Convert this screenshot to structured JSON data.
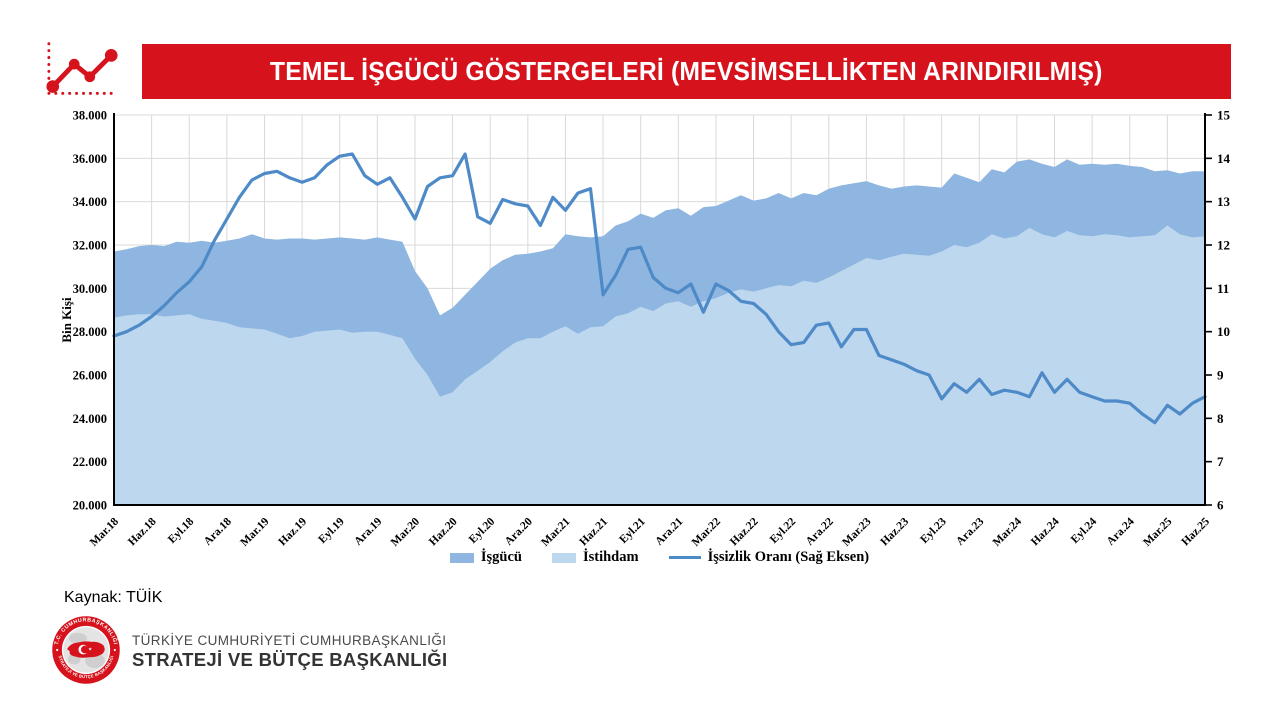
{
  "header": {
    "title": "TEMEL İŞGÜCÜ GÖSTERGELERİ (MEVSİMSELLİKTEN ARINDIRILMIŞ)"
  },
  "source_note": "Kaynak: TÜİK",
  "footer_logo": {
    "line1": "TÜRKİYE CUMHURİYETİ CUMHURBAŞKANLIĞI",
    "line2": "STRATEJİ VE BÜTÇE BAŞKANLIĞI",
    "emblem_top_text": "T.C. CUMHURBAŞKANLIĞI",
    "emblem_bottom_text": "STRATEJİ VE BÜTÇE BAŞKANLIĞI"
  },
  "colors": {
    "accent_red": "#D6131C",
    "grid": "#D9D9D9",
    "axis": "#000000",
    "isgucu_area": "#8FB6E0",
    "istihdam_area": "#BDD7EE",
    "line_blue": "#4E8AC8"
  },
  "chart_data": {
    "type": "area+line",
    "ylabel_left": "Bin Kişi",
    "left_axis": {
      "min": 20000,
      "max": 38000,
      "step": 2000,
      "tick_labels": [
        "38.000",
        "36.000",
        "34.000",
        "32.000",
        "30.000",
        "28.000",
        "26.000",
        "24.000",
        "22.000",
        "20.000"
      ]
    },
    "right_axis": {
      "min": 6,
      "max": 15,
      "step": 1,
      "tick_labels": [
        "15",
        "14",
        "13",
        "12",
        "11",
        "10",
        "9",
        "8",
        "7",
        "6"
      ]
    },
    "x_tick_labels": [
      "Mar.18",
      "Haz.18",
      "Eyl.18",
      "Ara.18",
      "Mar.19",
      "Haz.19",
      "Eyl.19",
      "Ara.19",
      "Mar.20",
      "Haz.20",
      "Eyl.20",
      "Ara.20",
      "Mar.21",
      "Haz.21",
      "Eyl.21",
      "Ara.21",
      "Mar.22",
      "Haz.22",
      "Eyl.22",
      "Ara.22",
      "Mar.23",
      "Haz.23",
      "Eyl.23",
      "Ara.23",
      "Mar.24",
      "Haz.24",
      "Eyl.24",
      "Ara.24",
      "Mar.25",
      "Haz.25"
    ],
    "months_per_tick": 3,
    "grid": true,
    "legend_position": "bottom",
    "series": [
      {
        "name": "İşgücü",
        "type": "area",
        "axis": "left",
        "color": "#8FB6E0",
        "values": [
          31700,
          31800,
          31950,
          32000,
          31950,
          32150,
          32100,
          32200,
          32100,
          32200,
          32300,
          32500,
          32300,
          32250,
          32300,
          32300,
          32250,
          32300,
          32350,
          32300,
          32250,
          32350,
          32250,
          32150,
          30800,
          30000,
          28750,
          29100,
          29700,
          30300,
          30900,
          31300,
          31550,
          31600,
          31700,
          31850,
          32500,
          32400,
          32350,
          32400,
          32900,
          33100,
          33450,
          33250,
          33600,
          33700,
          33350,
          33750,
          33800,
          34050,
          34300,
          34050,
          34150,
          34400,
          34150,
          34400,
          34300,
          34600,
          34750,
          34850,
          34950,
          34750,
          34600,
          34700,
          34750,
          34700,
          34650,
          35300,
          35100,
          34900,
          35500,
          35350,
          35850,
          35950,
          35750,
          35600,
          35950,
          35700,
          35750,
          35700,
          35750,
          35650,
          35600,
          35400,
          35450,
          35300,
          35400,
          35400
        ]
      },
      {
        "name": "İstihdam",
        "type": "area",
        "axis": "left",
        "color": "#BDD7EE",
        "values": [
          28650,
          28750,
          28800,
          28800,
          28700,
          28750,
          28800,
          28600,
          28500,
          28400,
          28200,
          28150,
          28100,
          27900,
          27700,
          27800,
          28000,
          28050,
          28100,
          27950,
          28000,
          28000,
          27850,
          27700,
          26750,
          26000,
          25000,
          25200,
          25800,
          26200,
          26600,
          27100,
          27500,
          27700,
          27700,
          28000,
          28250,
          27900,
          28200,
          28250,
          28700,
          28850,
          29150,
          28950,
          29300,
          29400,
          29150,
          29400,
          29550,
          29800,
          29950,
          29850,
          30000,
          30150,
          30100,
          30350,
          30250,
          30500,
          30800,
          31100,
          31400,
          31300,
          31450,
          31600,
          31550,
          31500,
          31700,
          32000,
          31900,
          32100,
          32500,
          32300,
          32400,
          32800,
          32500,
          32350,
          32650,
          32450,
          32400,
          32500,
          32450,
          32350,
          32400,
          32450,
          32900,
          32500,
          32350,
          32400
        ]
      },
      {
        "name": "İşsizlik Oranı (Sağ Eksen)",
        "type": "line",
        "axis": "right",
        "color": "#4E8AC8",
        "values": [
          9.9,
          10.0,
          10.15,
          10.35,
          10.6,
          10.9,
          11.15,
          11.5,
          12.1,
          12.6,
          13.1,
          13.5,
          13.65,
          13.7,
          13.55,
          13.45,
          13.55,
          13.85,
          14.05,
          14.1,
          13.6,
          13.4,
          13.55,
          13.1,
          12.6,
          13.35,
          13.55,
          13.6,
          14.1,
          12.65,
          12.5,
          13.05,
          12.95,
          12.9,
          12.45,
          13.1,
          12.8,
          13.2,
          13.3,
          10.85,
          11.3,
          11.9,
          11.95,
          11.25,
          11.0,
          10.9,
          11.1,
          10.45,
          11.1,
          10.95,
          10.7,
          10.65,
          10.4,
          10.0,
          9.7,
          9.75,
          10.15,
          10.2,
          9.65,
          10.05,
          10.05,
          9.45,
          9.35,
          9.25,
          9.1,
          9.0,
          8.45,
          8.8,
          8.6,
          8.9,
          8.55,
          8.65,
          8.6,
          8.5,
          9.05,
          8.6,
          8.9,
          8.6,
          8.5,
          8.4,
          8.4,
          8.35,
          8.1,
          7.9,
          8.3,
          8.1,
          8.35,
          8.5
        ]
      }
    ]
  }
}
